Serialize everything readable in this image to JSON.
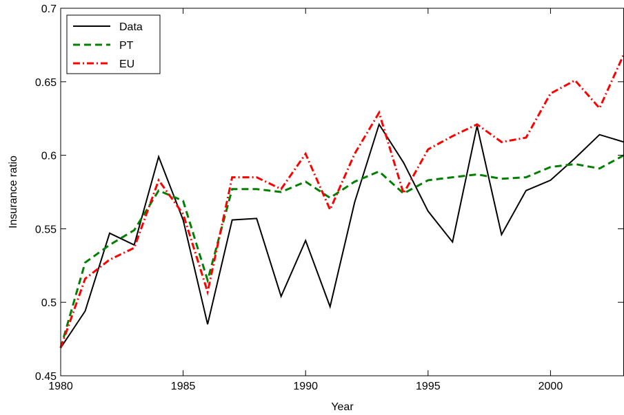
{
  "chart_data": {
    "type": "line",
    "title": "",
    "xlabel": "Year",
    "ylabel": "Insurance ratio",
    "xlim": [
      1980,
      2003
    ],
    "ylim": [
      0.45,
      0.7
    ],
    "xticks": [
      1980,
      1985,
      1990,
      1995,
      2000
    ],
    "xtick_labels": [
      "1980",
      "1985",
      "1990",
      "1995",
      "2000"
    ],
    "yticks": [
      0.45,
      0.5,
      0.55,
      0.6,
      0.65,
      0.7
    ],
    "ytick_labels": [
      "0.45",
      "0.5",
      "0.55",
      "0.6",
      "0.65",
      "0.7"
    ],
    "grid": false,
    "legend_position": "top-left",
    "x": [
      1980,
      1981,
      1982,
      1983,
      1984,
      1985,
      1986,
      1987,
      1988,
      1989,
      1990,
      1991,
      1992,
      1993,
      1994,
      1995,
      1996,
      1997,
      1998,
      1999,
      2000,
      2001,
      2002,
      2003
    ],
    "series": [
      {
        "name": "Data",
        "color": "#000000",
        "style": "solid",
        "values": [
          0.469,
          0.494,
          0.547,
          0.539,
          0.599,
          0.556,
          0.485,
          0.556,
          0.557,
          0.504,
          0.542,
          0.497,
          0.568,
          0.621,
          0.595,
          0.562,
          0.541,
          0.62,
          0.546,
          0.576,
          0.583,
          0.598,
          0.614,
          0.609
        ]
      },
      {
        "name": "PT",
        "color": "#007f00",
        "style": "dashed",
        "values": [
          0.469,
          0.527,
          0.539,
          0.549,
          0.576,
          0.569,
          0.515,
          0.577,
          0.577,
          0.575,
          0.582,
          0.571,
          0.582,
          0.589,
          0.574,
          0.583,
          0.585,
          0.587,
          0.584,
          0.585,
          0.592,
          0.594,
          0.591,
          0.6
        ]
      },
      {
        "name": "EU",
        "color": "#ff0000",
        "style": "dashdot",
        "values": [
          0.469,
          0.516,
          0.529,
          0.537,
          0.583,
          0.56,
          0.507,
          0.585,
          0.585,
          0.577,
          0.601,
          0.563,
          0.601,
          0.629,
          0.574,
          0.604,
          0.613,
          0.621,
          0.609,
          0.612,
          0.642,
          0.651,
          0.632,
          0.669
        ]
      }
    ]
  }
}
